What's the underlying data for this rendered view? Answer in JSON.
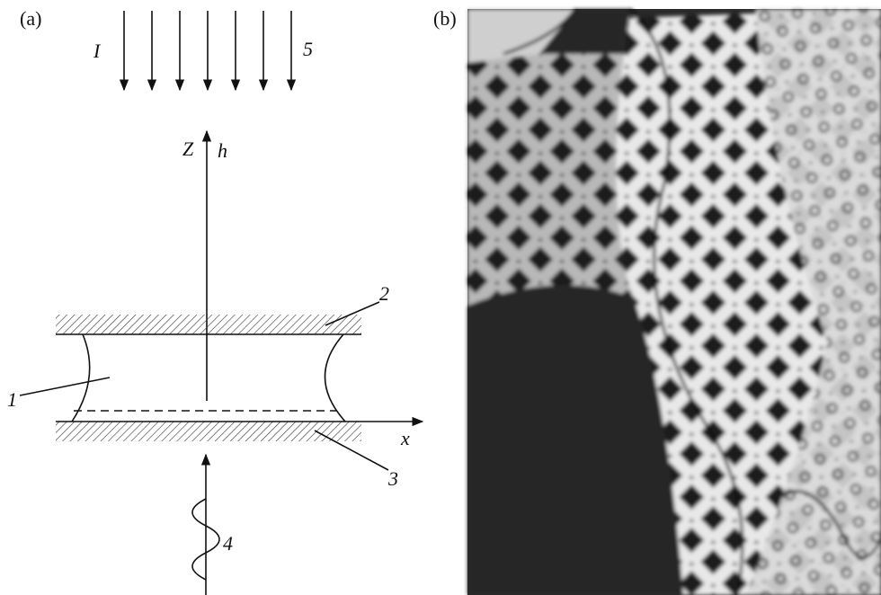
{
  "panel_a": {
    "label": "(a)",
    "beam": "I",
    "beam_number": "5",
    "z_axis": "Z",
    "field": "h",
    "top_plate": "2",
    "liquid": "1",
    "x_axis": "x",
    "bottom_plate": "3",
    "wave": "4"
  },
  "panel_b": {
    "label": "(b)"
  }
}
